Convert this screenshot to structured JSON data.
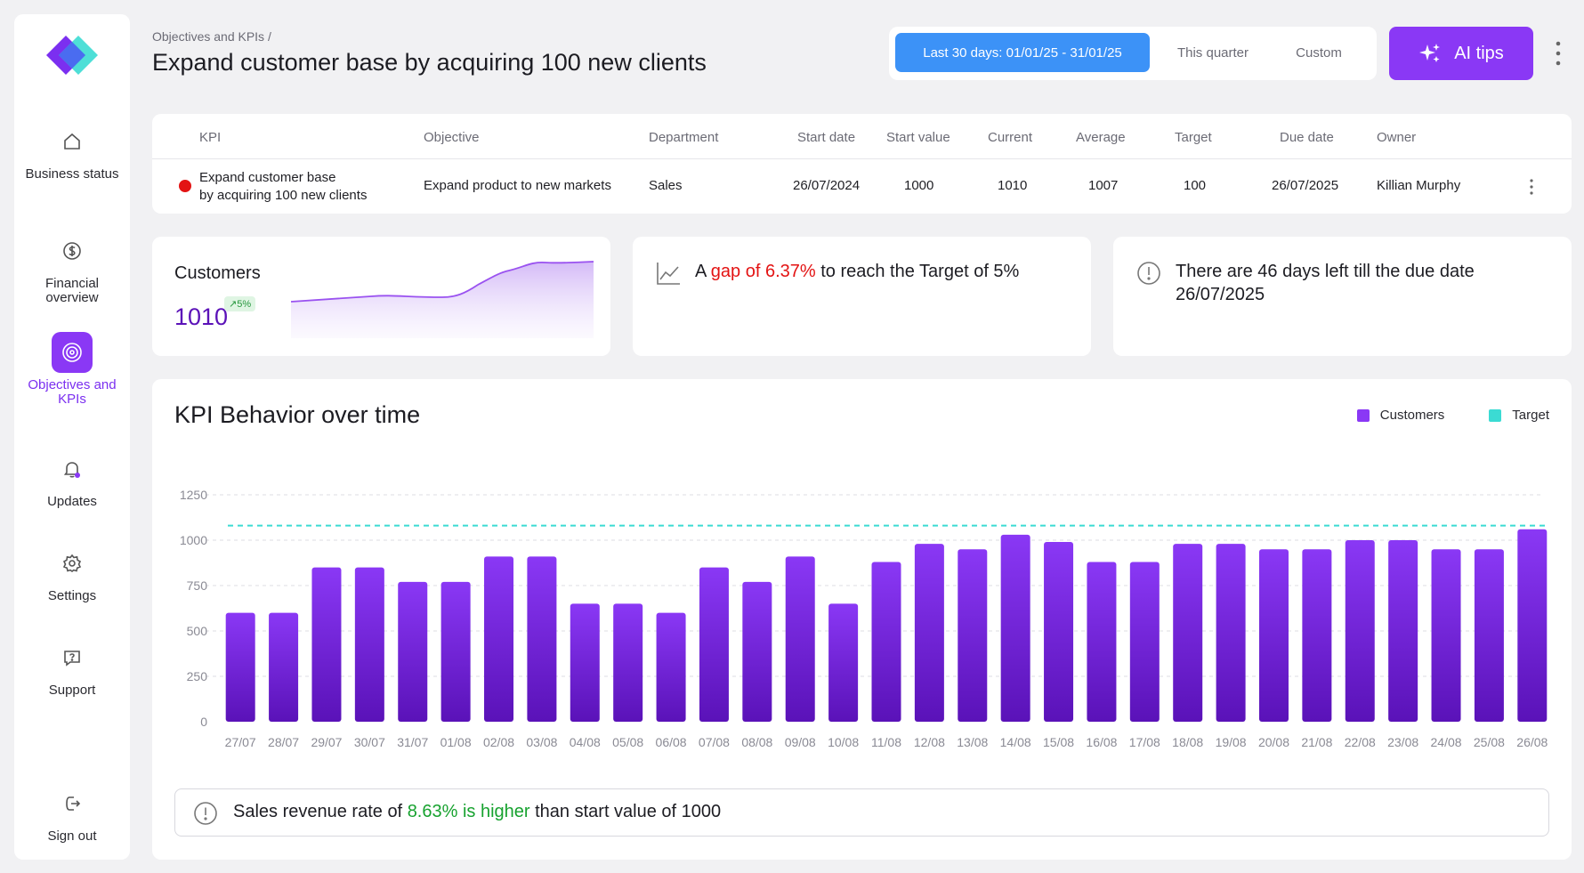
{
  "sidebar": {
    "items": [
      {
        "label": "Business status",
        "icon": "home-icon"
      },
      {
        "label": "Financial overview",
        "icon": "dollar-icon"
      },
      {
        "label": "Objectives and KPIs",
        "icon": "target-icon",
        "active": true
      },
      {
        "label": "Updates",
        "icon": "bell-icon"
      },
      {
        "label": "Settings",
        "icon": "gear-icon"
      },
      {
        "label": "Support",
        "icon": "help-icon"
      }
    ],
    "signout": "Sign out"
  },
  "header": {
    "breadcrumb": "Objectives and KPIs /",
    "title": "Expand customer base by acquiring 100 new clients",
    "periods": [
      "Last 30 days: 01/01/25 - 31/01/25",
      "This quarter",
      "Custom"
    ],
    "ai_label": "AI tips"
  },
  "kpi_table": {
    "headers": [
      "KPI",
      "Objective",
      "Department",
      "Start date",
      "Start value",
      "Current",
      "Average",
      "Target",
      "Due date",
      "Owner"
    ],
    "row": {
      "kpi_line1": "Expand customer base",
      "kpi_line2": "by acquiring 100 new clients",
      "objective": "Expand product to new markets",
      "department": "Sales",
      "start_date": "26/07/2024",
      "start_value": "1000",
      "current": "1010",
      "average": "1007",
      "target": "100",
      "due_date": "26/07/2025",
      "owner": "Killian Murphy"
    }
  },
  "cards": {
    "customers": {
      "label": "Customers",
      "value": "1010",
      "badge": "↗5%"
    },
    "gap": {
      "prefix": "A ",
      "highlight": "gap of 6.37%",
      "suffix": " to reach the Target of 5%"
    },
    "days": {
      "text": "There are 46 days left till the due date 26/07/2025"
    }
  },
  "colors": {
    "accent": "#8a38f5",
    "customers": "#8a38f5",
    "target": "#3bdbd3",
    "alert": "#e31313",
    "positive": "#17a22f"
  },
  "chart_data": {
    "type": "bar",
    "title": "KPI Behavior over time",
    "categories": [
      "27/07",
      "28/07",
      "29/07",
      "30/07",
      "31/07",
      "01/08",
      "02/08",
      "03/08",
      "04/08",
      "05/08",
      "06/08",
      "07/08",
      "08/08",
      "09/08",
      "10/08",
      "11/08",
      "12/08",
      "13/08",
      "14/08",
      "15/08",
      "16/08",
      "17/08",
      "18/08",
      "19/08",
      "20/08",
      "21/08",
      "22/08",
      "23/08",
      "24/08",
      "25/08",
      "26/08"
    ],
    "series": [
      {
        "name": "Customers",
        "values": [
          600,
          600,
          850,
          850,
          770,
          770,
          910,
          910,
          650,
          650,
          600,
          850,
          770,
          910,
          650,
          880,
          980,
          950,
          1030,
          990,
          880,
          880,
          980,
          980,
          950,
          950,
          1000,
          1000,
          950,
          950,
          1060
        ]
      }
    ],
    "target_line": {
      "name": "Target",
      "value": 1080
    },
    "yticks": [
      0,
      250,
      500,
      750,
      1000,
      1250
    ],
    "ylim": [
      0,
      1250
    ],
    "grid": true,
    "legend": "top-right"
  },
  "note": {
    "prefix": "Sales revenue rate of ",
    "highlight": "8.63% is higher",
    "suffix": " than start value of 1000"
  }
}
